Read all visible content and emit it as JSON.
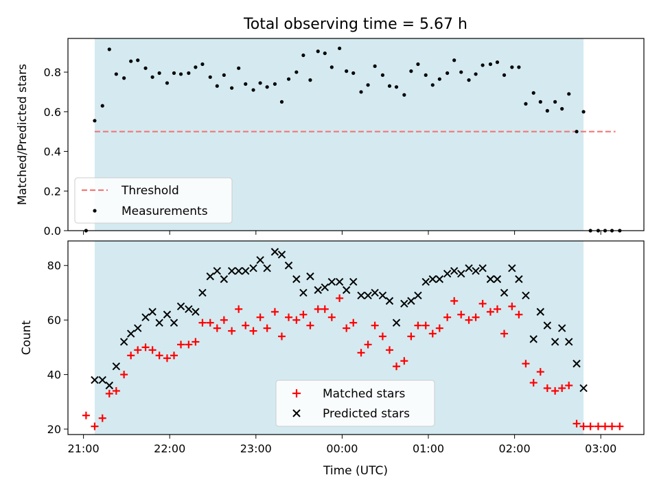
{
  "chart_data": [
    {
      "type": "scatter",
      "title": "Total observing time = 5.67 h",
      "ylabel": "Matched/Predicted stars",
      "ylim": [
        0,
        0.97
      ],
      "yticks": [
        0.0,
        0.2,
        0.4,
        0.6,
        0.8
      ],
      "ytick_labels": [
        "0.0",
        "0.2",
        "0.4",
        "0.6",
        "0.8"
      ],
      "xlim_hours": [
        20.82,
        27.5
      ],
      "shaded_span_hours": [
        21.13,
        26.8
      ],
      "shade_color": "#d4eaf0",
      "legend_position": "lower left",
      "threshold": {
        "name": "Threshold",
        "value": 0.5,
        "x_start_hours": 21.13,
        "x_end_hours": 27.17,
        "color": "#f07777"
      },
      "series": [
        {
          "name": "Measurements",
          "color": "#000000",
          "marker": "dot",
          "x_hours": [
            21.03,
            21.13,
            21.22,
            21.3,
            21.38,
            21.47,
            21.55,
            21.63,
            21.72,
            21.8,
            21.88,
            21.97,
            22.05,
            22.13,
            22.22,
            22.3,
            22.38,
            22.47,
            22.55,
            22.63,
            22.72,
            22.8,
            22.88,
            22.97,
            23.05,
            23.13,
            23.22,
            23.3,
            23.38,
            23.47,
            23.55,
            23.63,
            23.72,
            23.8,
            23.88,
            23.97,
            24.05,
            24.13,
            24.22,
            24.3,
            24.38,
            24.47,
            24.55,
            24.63,
            24.72,
            24.8,
            24.88,
            24.97,
            25.05,
            25.13,
            25.22,
            25.3,
            25.38,
            25.47,
            25.55,
            25.63,
            25.72,
            25.8,
            25.88,
            25.97,
            26.05,
            26.13,
            26.22,
            26.3,
            26.38,
            26.47,
            26.55,
            26.63,
            26.72,
            26.8,
            26.88,
            26.97,
            27.05,
            27.13,
            27.22
          ],
          "y": [
            0.0,
            0.555,
            0.63,
            0.915,
            0.79,
            0.77,
            0.855,
            0.86,
            0.82,
            0.775,
            0.795,
            0.745,
            0.795,
            0.79,
            0.795,
            0.825,
            0.84,
            0.775,
            0.73,
            0.785,
            0.72,
            0.82,
            0.74,
            0.71,
            0.745,
            0.725,
            0.74,
            0.65,
            0.765,
            0.8,
            0.885,
            0.76,
            0.905,
            0.895,
            0.825,
            0.92,
            0.805,
            0.795,
            0.7,
            0.735,
            0.83,
            0.785,
            0.73,
            0.725,
            0.685,
            0.805,
            0.84,
            0.785,
            0.735,
            0.765,
            0.795,
            0.86,
            0.8,
            0.76,
            0.79,
            0.835,
            0.84,
            0.85,
            0.785,
            0.825,
            0.825,
            0.64,
            0.695,
            0.65,
            0.605,
            0.65,
            0.615,
            0.69,
            0.5,
            0.6,
            0.0,
            0.0,
            0.0,
            0.0,
            0.0
          ]
        }
      ]
    },
    {
      "type": "scatter",
      "xlabel": "Time (UTC)",
      "ylabel": "Count",
      "ylim": [
        18,
        89
      ],
      "yticks": [
        20,
        40,
        60,
        80
      ],
      "ytick_labels": [
        "20",
        "40",
        "60",
        "80"
      ],
      "xlim_hours": [
        20.82,
        27.5
      ],
      "xticks_hours": [
        21,
        22,
        23,
        24,
        25,
        26,
        27
      ],
      "xtick_labels": [
        "21:00",
        "22:00",
        "23:00",
        "00:00",
        "01:00",
        "02:00",
        "03:00"
      ],
      "shaded_span_hours": [
        21.13,
        26.8
      ],
      "shade_color": "#d4eaf0",
      "legend_position": "lower center",
      "series": [
        {
          "name": "Matched stars",
          "color": "#ff0000",
          "marker": "plus",
          "x_hours": [
            21.03,
            21.13,
            21.22,
            21.3,
            21.38,
            21.47,
            21.55,
            21.63,
            21.72,
            21.8,
            21.88,
            21.97,
            22.05,
            22.13,
            22.22,
            22.3,
            22.38,
            22.47,
            22.55,
            22.63,
            22.72,
            22.8,
            22.88,
            22.97,
            23.05,
            23.13,
            23.22,
            23.3,
            23.38,
            23.47,
            23.55,
            23.63,
            23.72,
            23.8,
            23.88,
            23.97,
            24.05,
            24.13,
            24.22,
            24.3,
            24.38,
            24.47,
            24.55,
            24.63,
            24.72,
            24.8,
            24.88,
            24.97,
            25.05,
            25.13,
            25.22,
            25.3,
            25.38,
            25.47,
            25.55,
            25.63,
            25.72,
            25.8,
            25.88,
            25.97,
            26.05,
            26.13,
            26.22,
            26.3,
            26.38,
            26.47,
            26.55,
            26.63,
            26.72,
            26.8,
            26.88,
            26.97,
            27.05,
            27.13,
            27.22
          ],
          "y": [
            25,
            21,
            24,
            33,
            34,
            40,
            47,
            49,
            50,
            49,
            47,
            46,
            47,
            51,
            51,
            52,
            59,
            59,
            57,
            60,
            56,
            64,
            58,
            56,
            61,
            57,
            63,
            54,
            61,
            60,
            62,
            58,
            64,
            64,
            61,
            68,
            57,
            59,
            48,
            51,
            58,
            54,
            49,
            43,
            45,
            54,
            58,
            58,
            55,
            57,
            61,
            67,
            62,
            60,
            61,
            66,
            63,
            64,
            55,
            65,
            62,
            44,
            37,
            41,
            35,
            34,
            35,
            36,
            22,
            21,
            21,
            21,
            21,
            21,
            21
          ]
        },
        {
          "name": "Predicted stars",
          "color": "#000000",
          "marker": "x",
          "x_hours": [
            21.13,
            21.22,
            21.3,
            21.38,
            21.47,
            21.55,
            21.63,
            21.72,
            21.8,
            21.88,
            21.97,
            22.05,
            22.13,
            22.22,
            22.3,
            22.38,
            22.47,
            22.55,
            22.63,
            22.72,
            22.8,
            22.88,
            22.97,
            23.05,
            23.13,
            23.22,
            23.3,
            23.38,
            23.47,
            23.55,
            23.63,
            23.72,
            23.8,
            23.88,
            23.97,
            24.05,
            24.13,
            24.22,
            24.3,
            24.38,
            24.47,
            24.55,
            24.63,
            24.72,
            24.8,
            24.88,
            24.97,
            25.05,
            25.13,
            25.22,
            25.3,
            25.38,
            25.47,
            25.55,
            25.63,
            25.72,
            25.8,
            25.88,
            25.97,
            26.05,
            26.13,
            26.22,
            26.3,
            26.38,
            26.47,
            26.55,
            26.63,
            26.72,
            26.8
          ],
          "y": [
            38,
            38,
            36,
            43,
            52,
            55,
            57,
            61,
            63,
            59,
            62,
            59,
            65,
            64,
            63,
            70,
            76,
            78,
            75,
            78,
            78,
            78,
            79,
            82,
            79,
            85,
            84,
            80,
            75,
            70,
            76,
            71,
            72,
            74,
            74,
            71,
            74,
            69,
            69,
            70,
            69,
            67,
            59,
            66,
            67,
            69,
            74,
            75,
            75,
            77,
            78,
            77,
            79,
            78,
            79,
            75,
            75,
            70,
            79,
            75,
            69,
            53,
            63,
            58,
            52,
            57,
            52,
            44,
            35
          ]
        }
      ]
    }
  ]
}
